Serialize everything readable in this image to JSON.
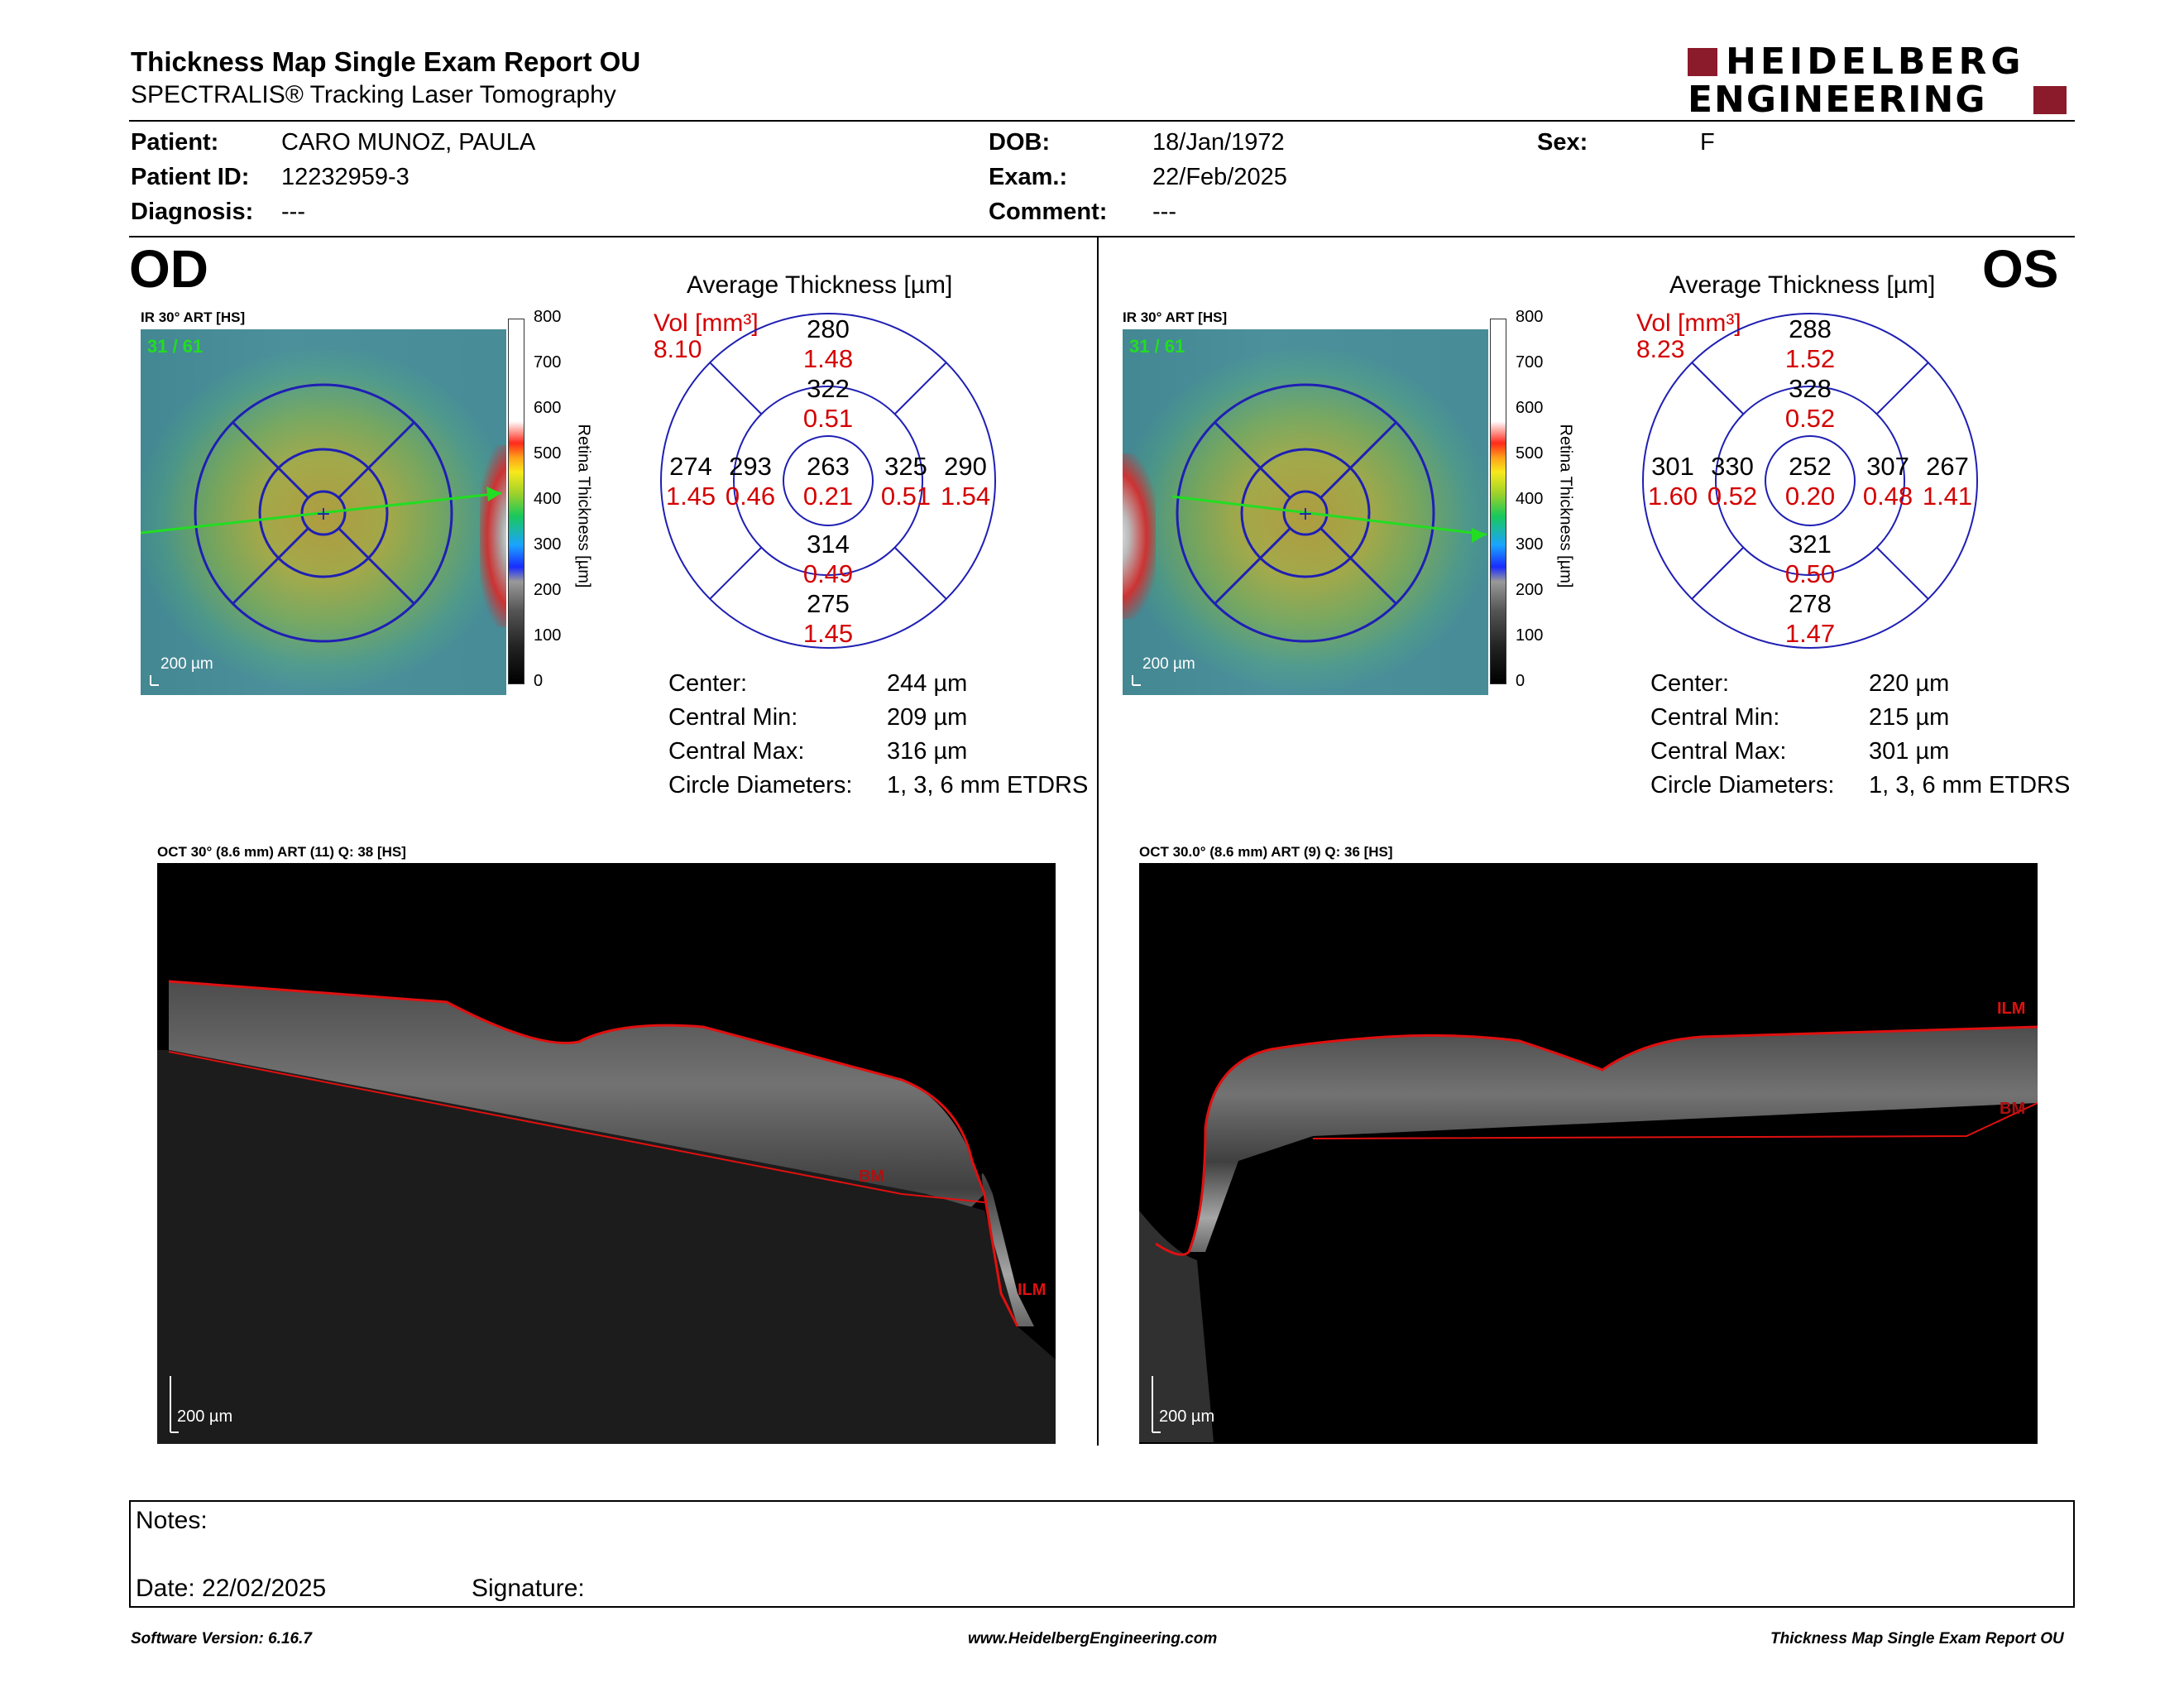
{
  "header": {
    "title": "Thickness Map Single Exam Report OU",
    "subtitle": "SPECTRALIS® Tracking Laser Tomography",
    "logo_line1": "HEIDELBERG",
    "logo_line2": "ENGINEERING",
    "logo_color": "#8b1a2b"
  },
  "patient": {
    "patient_label": "Patient:",
    "patient_value": "CARO MUNOZ, PAULA",
    "id_label": "Patient ID:",
    "id_value": "12232959-3",
    "diagnosis_label": "Diagnosis:",
    "diagnosis_value": "---",
    "dob_label": "DOB:",
    "dob_value": "18/Jan/1972",
    "exam_label": "Exam.:",
    "exam_value": "22/Feb/2025",
    "comment_label": "Comment:",
    "comment_value": "---",
    "sex_label": "Sex:",
    "sex_value": "F"
  },
  "od": {
    "eye": "OD",
    "ir_label": "IR 30° ART [HS]",
    "ir_overlay": "31 / 61",
    "scale": "200 µm",
    "colorbar_ticks": [
      "800",
      "700",
      "600",
      "500",
      "400",
      "300",
      "200",
      "100",
      "0"
    ],
    "colorbar_title": "Retina Thickness [µm]",
    "avg_title": "Average Thickness [µm]",
    "vol_label": "Vol [mm³]",
    "vol_value": "8.10",
    "sectors": {
      "outer_top": "280",
      "outer_top_vol": "1.48",
      "inner_top": "322",
      "inner_top_vol": "0.51",
      "outer_left": "274",
      "outer_left_vol": "1.45",
      "inner_left": "293",
      "inner_left_vol": "0.46",
      "center": "263",
      "center_vol": "0.21",
      "inner_right": "325",
      "inner_right_vol": "0.51",
      "outer_right": "290",
      "outer_right_vol": "1.54",
      "inner_bottom": "314",
      "inner_bottom_vol": "0.49",
      "outer_bottom": "275",
      "outer_bottom_vol": "1.45"
    },
    "stats": {
      "center_label": "Center:",
      "center_value": "244 µm",
      "min_label": "Central Min:",
      "min_value": "209 µm",
      "max_label": "Central Max:",
      "max_value": "316 µm",
      "diam_label": "Circle Diameters:",
      "diam_value": "1, 3, 6 mm ETDRS"
    },
    "oct_label": "OCT 30° (8.6 mm) ART (11) Q: 38 [HS]",
    "oct_scale": "200 µm",
    "oct_ilm": "ILM",
    "oct_bm": "BM"
  },
  "os": {
    "eye": "OS",
    "ir_label": "IR 30° ART [HS]",
    "ir_overlay": "31 / 61",
    "scale": "200 µm",
    "colorbar_ticks": [
      "800",
      "700",
      "600",
      "500",
      "400",
      "300",
      "200",
      "100",
      "0"
    ],
    "colorbar_title": "Retina Thickness [µm]",
    "avg_title": "Average Thickness [µm]",
    "vol_label": "Vol [mm³]",
    "vol_value": "8.23",
    "sectors": {
      "outer_top": "288",
      "outer_top_vol": "1.52",
      "inner_top": "328",
      "inner_top_vol": "0.52",
      "outer_left": "301",
      "outer_left_vol": "1.60",
      "inner_left": "330",
      "inner_left_vol": "0.52",
      "center": "252",
      "center_vol": "0.20",
      "inner_right": "307",
      "inner_right_vol": "0.48",
      "outer_right": "267",
      "outer_right_vol": "1.41",
      "inner_bottom": "321",
      "inner_bottom_vol": "0.50",
      "outer_bottom": "278",
      "outer_bottom_vol": "1.47"
    },
    "stats": {
      "center_label": "Center:",
      "center_value": "220 µm",
      "min_label": "Central Min:",
      "min_value": "215 µm",
      "max_label": "Central Max:",
      "max_value": "301 µm",
      "diam_label": "Circle Diameters:",
      "diam_value": "1, 3, 6 mm ETDRS"
    },
    "oct_label": "OCT 30.0° (8.6 mm) ART (9) Q: 36 [HS]",
    "oct_scale": "200 µm",
    "oct_ilm": "ILM",
    "oct_bm": "BM"
  },
  "notes": {
    "notes_label": "Notes:",
    "date_label": "Date: 22/02/2025",
    "signature_label": "Signature:"
  },
  "footer": {
    "version": "Software Version: 6.16.7",
    "url": "www.HeidelbergEngineering.com",
    "report": "Thickness Map Single Exam Report OU"
  },
  "colors": {
    "sector_line": "#1f1fb4",
    "vol_red": "#d40000",
    "ilm_red": "#e01010",
    "overlay_green": "#22dd22"
  }
}
